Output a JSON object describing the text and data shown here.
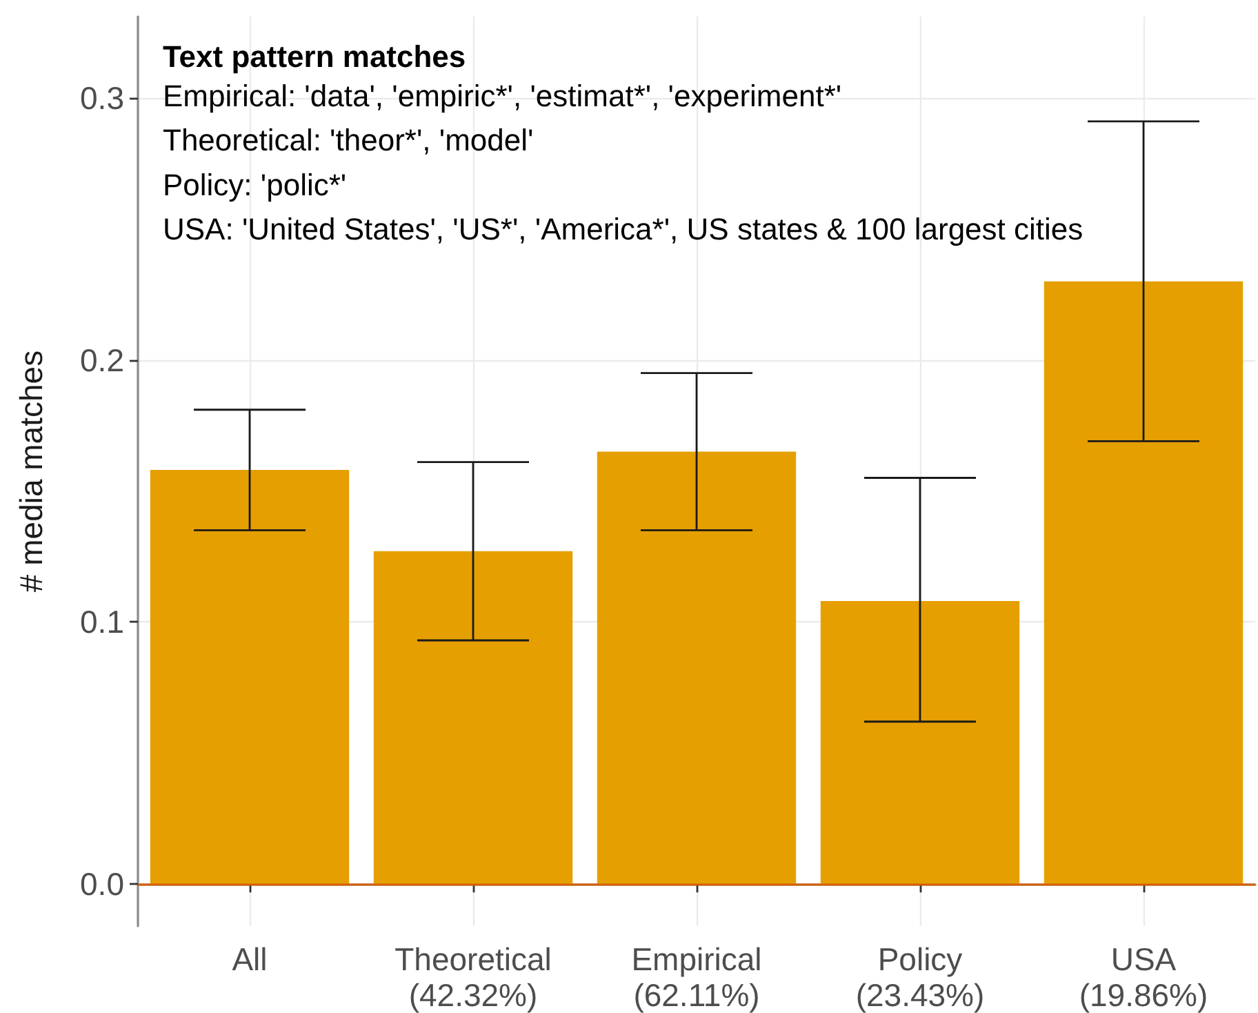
{
  "chart_data": {
    "type": "bar",
    "ylabel": "# media matches",
    "categories": [
      "All",
      "Theoretical\n(42.32%)",
      "Empirical\n(62.11%)",
      "Policy\n(23.43%)",
      "USA\n(19.86%)"
    ],
    "values": [
      0.158,
      0.127,
      0.165,
      0.108,
      0.23
    ],
    "color": "#e69f00",
    "errors": [
      [
        0.135,
        0.181
      ],
      [
        0.093,
        0.161
      ],
      [
        0.135,
        0.195
      ],
      [
        0.062,
        0.155
      ],
      [
        0.169,
        0.291
      ]
    ],
    "ylim": [
      -0.016,
      0.331
    ],
    "yticks": [
      {
        "value": 0,
        "label": "0.0"
      },
      0.1,
      0.2,
      0.3
    ],
    "grid": true,
    "ref_lines": [
      {
        "axis": "y",
        "value": 0,
        "color": "#d55e00"
      }
    ],
    "annotations": [
      "Text pattern matches",
      "Empirical: 'data', 'empiric*', 'estimat*', 'experiment*'",
      "Theoretical: 'theor*', 'model'",
      "Policy: 'polic*'",
      "USA: 'United States', 'US*', 'America*', US states & 100 largest cities"
    ]
  }
}
